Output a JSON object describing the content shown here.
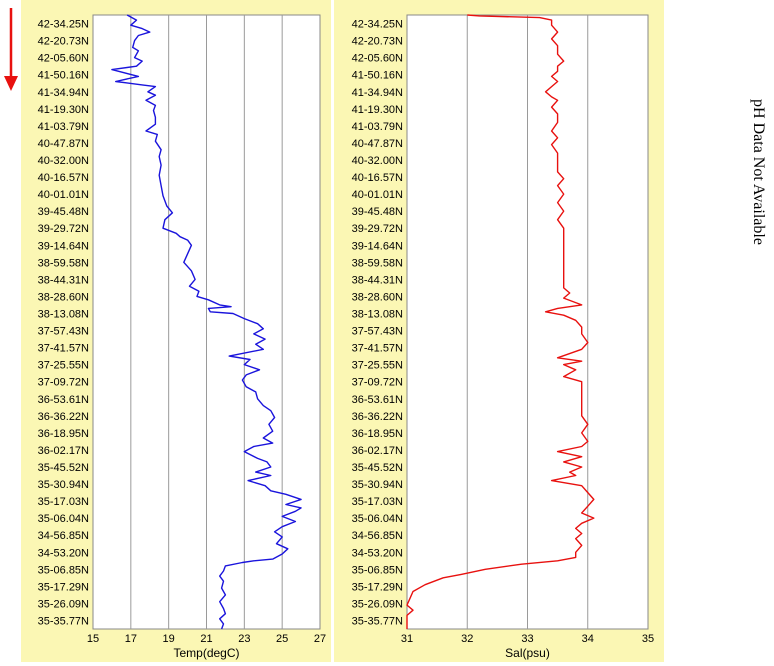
{
  "note": "pH Data Not Available",
  "colors": {
    "panel_bg": "#fbf7b4",
    "plot_bg": "#ffffff",
    "grid": "#9a9a9a",
    "arrow": "#e8110f"
  },
  "icons": {
    "direction_arrow": "down-arrow-icon"
  },
  "chart_data": [
    {
      "type": "line",
      "title": "",
      "xlabel": "Temp(degC)",
      "ylabel": "",
      "xlim": [
        15,
        27
      ],
      "xticks": [
        "15",
        "17",
        "19",
        "21",
        "23",
        "25",
        "27"
      ],
      "grid": true,
      "y_categories": [
        "42-34.25N",
        "42-20.73N",
        "42-05.60N",
        "41-50.16N",
        "41-34.94N",
        "41-19.30N",
        "41-03.79N",
        "40-47.87N",
        "40-32.00N",
        "40-16.57N",
        "40-01.01N",
        "39-45.48N",
        "39-29.72N",
        "39-14.64N",
        "38-59.58N",
        "38-44.31N",
        "38-28.60N",
        "38-13.08N",
        "37-57.43N",
        "37-41.57N",
        "37-25.55N",
        "37-09.72N",
        "36-53.61N",
        "36-36.22N",
        "36-18.95N",
        "36-02.17N",
        "35-45.52N",
        "35-30.94N",
        "35-17.03N",
        "35-06.04N",
        "34-56.85N",
        "34-53.20N",
        "35-06.85N",
        "35-17.29N",
        "35-26.09N",
        "35-35.77N"
      ],
      "series": [
        {
          "color": "#1a14dc",
          "points": [
            [
              16.8,
              0
            ],
            [
              17.3,
              0.3
            ],
            [
              17.0,
              0.6
            ],
            [
              17.6,
              0.8
            ],
            [
              18.0,
              1.0
            ],
            [
              17.4,
              1.2
            ],
            [
              17.2,
              1.5
            ],
            [
              17.1,
              1.9
            ],
            [
              17.4,
              2.1
            ],
            [
              17.2,
              2.5
            ],
            [
              17.6,
              2.7
            ],
            [
              17.3,
              3.0
            ],
            [
              16.0,
              3.2
            ],
            [
              17.4,
              3.6
            ],
            [
              16.2,
              3.9
            ],
            [
              17.6,
              4.1
            ],
            [
              18.3,
              4.2
            ],
            [
              17.9,
              4.5
            ],
            [
              18.3,
              4.7
            ],
            [
              17.8,
              5.0
            ],
            [
              18.3,
              5.3
            ],
            [
              18.2,
              5.6
            ],
            [
              18.3,
              6.0
            ],
            [
              18.3,
              6.4
            ],
            [
              17.8,
              6.8
            ],
            [
              18.4,
              7.0
            ],
            [
              18.3,
              7.4
            ],
            [
              18.6,
              7.9
            ],
            [
              18.5,
              8.3
            ],
            [
              18.6,
              8.8
            ],
            [
              18.5,
              9.4
            ],
            [
              18.6,
              10.0
            ],
            [
              18.7,
              10.6
            ],
            [
              18.9,
              11.2
            ],
            [
              19.2,
              11.6
            ],
            [
              18.8,
              12.0
            ],
            [
              18.7,
              12.5
            ],
            [
              19.4,
              12.8
            ],
            [
              19.6,
              13.0
            ],
            [
              20.0,
              13.2
            ],
            [
              20.2,
              13.5
            ],
            [
              20.0,
              14.0
            ],
            [
              19.8,
              14.5
            ],
            [
              20.2,
              15.0
            ],
            [
              20.4,
              15.5
            ],
            [
              20.1,
              15.9
            ],
            [
              20.6,
              16.2
            ],
            [
              20.5,
              16.5
            ],
            [
              21.1,
              16.7
            ],
            [
              21.7,
              17.0
            ],
            [
              22.3,
              17.1
            ],
            [
              21.1,
              17.2
            ],
            [
              21.2,
              17.4
            ],
            [
              22.4,
              17.5
            ],
            [
              23.0,
              17.8
            ],
            [
              23.7,
              18.1
            ],
            [
              24.0,
              18.4
            ],
            [
              23.5,
              18.7
            ],
            [
              24.1,
              19.0
            ],
            [
              23.6,
              19.3
            ],
            [
              24.0,
              19.6
            ],
            [
              22.2,
              20.0
            ],
            [
              23.3,
              20.2
            ],
            [
              23.0,
              20.5
            ],
            [
              23.8,
              20.8
            ],
            [
              23.1,
              21.1
            ],
            [
              22.9,
              21.4
            ],
            [
              23.1,
              21.8
            ],
            [
              23.6,
              22.1
            ],
            [
              23.7,
              22.5
            ],
            [
              24.0,
              22.9
            ],
            [
              24.4,
              23.2
            ],
            [
              24.6,
              23.6
            ],
            [
              24.3,
              24.0
            ],
            [
              24.5,
              24.4
            ],
            [
              24.0,
              24.8
            ],
            [
              24.5,
              25.1
            ],
            [
              23.5,
              25.3
            ],
            [
              23.0,
              25.6
            ],
            [
              23.7,
              26.0
            ],
            [
              24.2,
              26.2
            ],
            [
              24.4,
              26.5
            ],
            [
              23.6,
              26.8
            ],
            [
              24.4,
              27.0
            ],
            [
              23.2,
              27.3
            ],
            [
              24.1,
              27.6
            ],
            [
              24.4,
              27.9
            ],
            [
              25.2,
              28.1
            ],
            [
              26.0,
              28.4
            ],
            [
              25.2,
              28.7
            ],
            [
              26.0,
              28.9
            ],
            [
              25.7,
              29.1
            ],
            [
              25.0,
              29.4
            ],
            [
              25.7,
              29.7
            ],
            [
              25.0,
              30.0
            ],
            [
              24.6,
              30.3
            ],
            [
              25.0,
              30.6
            ],
            [
              24.7,
              31.0
            ],
            [
              25.3,
              31.3
            ],
            [
              25.0,
              31.6
            ],
            [
              24.5,
              31.9
            ],
            [
              23.5,
              32.0
            ],
            [
              22.9,
              32.1
            ],
            [
              22.0,
              32.3
            ],
            [
              21.9,
              32.6
            ],
            [
              21.7,
              32.9
            ],
            [
              21.9,
              33.2
            ],
            [
              21.8,
              33.6
            ],
            [
              22.0,
              34.0
            ],
            [
              21.7,
              34.4
            ],
            [
              21.9,
              34.8
            ],
            [
              22.0,
              35.1
            ],
            [
              21.7,
              35.4
            ],
            [
              21.9,
              35.7
            ],
            [
              21.8,
              36.0
            ]
          ]
        }
      ]
    },
    {
      "type": "line",
      "title": "",
      "xlabel": "Sal(psu)",
      "ylabel": "",
      "xlim": [
        31,
        35
      ],
      "xticks": [
        "31",
        "32",
        "33",
        "34",
        "35"
      ],
      "grid": true,
      "y_categories": [
        "42-34.25N",
        "42-20.73N",
        "42-05.60N",
        "41-50.16N",
        "41-34.94N",
        "41-19.30N",
        "41-03.79N",
        "40-47.87N",
        "40-32.00N",
        "40-16.57N",
        "40-01.01N",
        "39-45.48N",
        "39-29.72N",
        "39-14.64N",
        "38-59.58N",
        "38-44.31N",
        "38-28.60N",
        "38-13.08N",
        "37-57.43N",
        "37-41.57N",
        "37-25.55N",
        "37-09.72N",
        "36-53.61N",
        "36-36.22N",
        "36-18.95N",
        "36-02.17N",
        "35-45.52N",
        "35-30.94N",
        "35-17.03N",
        "35-06.04N",
        "34-56.85N",
        "34-53.20N",
        "35-06.85N",
        "35-17.29N",
        "35-26.09N",
        "35-35.77N"
      ],
      "series": [
        {
          "color": "#e8110f",
          "points": [
            [
              32.0,
              0
            ],
            [
              32.2,
              0.05
            ],
            [
              33.2,
              0.15
            ],
            [
              33.4,
              0.3
            ],
            [
              33.4,
              0.6
            ],
            [
              33.5,
              1.0
            ],
            [
              33.4,
              1.4
            ],
            [
              33.5,
              1.8
            ],
            [
              33.5,
              2.3
            ],
            [
              33.6,
              2.7
            ],
            [
              33.5,
              3.0
            ],
            [
              33.5,
              3.3
            ],
            [
              33.4,
              3.6
            ],
            [
              33.5,
              3.9
            ],
            [
              33.4,
              4.2
            ],
            [
              33.3,
              4.5
            ],
            [
              33.4,
              4.8
            ],
            [
              33.5,
              5.0
            ],
            [
              33.4,
              5.4
            ],
            [
              33.5,
              5.8
            ],
            [
              33.5,
              6.3
            ],
            [
              33.4,
              6.8
            ],
            [
              33.5,
              7.2
            ],
            [
              33.4,
              7.6
            ],
            [
              33.5,
              8.1
            ],
            [
              33.5,
              8.6
            ],
            [
              33.5,
              9.2
            ],
            [
              33.6,
              9.6
            ],
            [
              33.5,
              10.0
            ],
            [
              33.6,
              10.5
            ],
            [
              33.5,
              11.0
            ],
            [
              33.6,
              11.5
            ],
            [
              33.5,
              12.0
            ],
            [
              33.6,
              12.5
            ],
            [
              33.6,
              13.0
            ],
            [
              33.6,
              13.5
            ],
            [
              33.6,
              14.0
            ],
            [
              33.6,
              14.5
            ],
            [
              33.6,
              15.0
            ],
            [
              33.6,
              15.5
            ],
            [
              33.6,
              16.0
            ],
            [
              33.7,
              16.3
            ],
            [
              33.6,
              16.6
            ],
            [
              33.9,
              17.0
            ],
            [
              33.5,
              17.2
            ],
            [
              33.3,
              17.4
            ],
            [
              33.6,
              17.6
            ],
            [
              33.8,
              17.9
            ],
            [
              33.9,
              18.3
            ],
            [
              33.9,
              18.7
            ],
            [
              34.0,
              19.2
            ],
            [
              33.9,
              19.6
            ],
            [
              33.5,
              20.1
            ],
            [
              33.9,
              20.3
            ],
            [
              33.6,
              20.5
            ],
            [
              33.8,
              20.8
            ],
            [
              33.6,
              21.2
            ],
            [
              33.9,
              21.5
            ],
            [
              33.9,
              22.0
            ],
            [
              33.9,
              22.5
            ],
            [
              33.9,
              23.0
            ],
            [
              33.9,
              23.5
            ],
            [
              34.0,
              24.0
            ],
            [
              33.9,
              24.5
            ],
            [
              34.0,
              25.0
            ],
            [
              33.9,
              25.3
            ],
            [
              33.5,
              25.6
            ],
            [
              33.9,
              25.9
            ],
            [
              33.6,
              26.2
            ],
            [
              33.9,
              26.5
            ],
            [
              33.7,
              26.8
            ],
            [
              33.8,
              27.0
            ],
            [
              33.4,
              27.3
            ],
            [
              33.9,
              27.6
            ],
            [
              34.0,
              28.0
            ],
            [
              34.1,
              28.4
            ],
            [
              34.0,
              28.8
            ],
            [
              33.9,
              29.2
            ],
            [
              34.1,
              29.5
            ],
            [
              33.9,
              29.8
            ],
            [
              33.8,
              30.1
            ],
            [
              33.9,
              30.4
            ],
            [
              33.8,
              30.7
            ],
            [
              33.9,
              31.1
            ],
            [
              33.8,
              31.5
            ],
            [
              33.8,
              31.8
            ],
            [
              33.5,
              32.0
            ],
            [
              32.9,
              32.2
            ],
            [
              32.3,
              32.5
            ],
            [
              31.9,
              32.8
            ],
            [
              31.6,
              33.0
            ],
            [
              31.3,
              33.4
            ],
            [
              31.1,
              33.8
            ],
            [
              31.05,
              34.2
            ],
            [
              31.0,
              34.6
            ],
            [
              31.1,
              34.9
            ],
            [
              31.0,
              35.2
            ],
            [
              31.0,
              35.6
            ],
            [
              31.0,
              36.0
            ]
          ]
        }
      ]
    }
  ]
}
